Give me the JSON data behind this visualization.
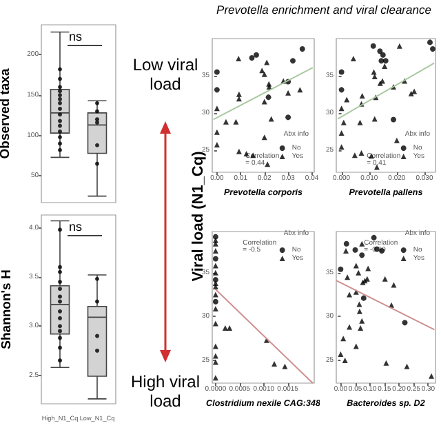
{
  "chart_data": [
    {
      "type": "box",
      "ylabel": "Observed taxa",
      "categories": [
        "High_N1_Cq",
        "Low_N1_Cq"
      ],
      "tick_labels": "y",
      "ylim": [
        17,
        237
      ],
      "yticks": [
        50,
        100,
        150,
        200
      ],
      "annotations": [
        "ns"
      ],
      "boxes": [
        {
          "low": 73,
          "q1": 103,
          "median": 128,
          "q3": 157,
          "high": 228
        },
        {
          "low": 25,
          "q1": 78,
          "median": 113,
          "q3": 128,
          "high": 143
        }
      ],
      "series": [
        {
          "type": "scatter",
          "color": "#000000",
          "x": [
            "High_N1_Cq",
            "High_N1_Cq",
            "High_N1_Cq",
            "High_N1_Cq",
            "High_N1_Cq",
            "High_N1_Cq",
            "High_N1_Cq",
            "High_N1_Cq",
            "High_N1_Cq",
            "High_N1_Cq",
            "High_N1_Cq",
            "High_N1_Cq",
            "High_N1_Cq",
            "High_N1_Cq",
            "High_N1_Cq",
            "Low_N1_Cq",
            "Low_N1_Cq",
            "Low_N1_Cq",
            "Low_N1_Cq",
            "Low_N1_Cq",
            "Low_N1_Cq"
          ],
          "values": [
            182,
            170,
            160,
            155,
            150,
            145,
            140,
            133,
            126,
            118,
            112,
            105,
            98,
            90,
            82,
            140,
            130,
            120,
            116,
            88,
            65
          ]
        }
      ]
    },
    {
      "type": "box",
      "ylabel": "Shannon's H",
      "categories": [
        "High_N1_Cq",
        "Low_N1_Cq"
      ],
      "ylim": [
        2.21,
        4.13
      ],
      "yticks": [
        {
          "value": 2.5,
          "label": "2.5"
        },
        {
          "value": 3,
          "label": "3.0"
        },
        {
          "value": 3.5,
          "label": "3.5"
        },
        {
          "value": 4,
          "label": "4.0"
        }
      ],
      "annotations": [
        "ns"
      ],
      "boxes": [
        {
          "low": 2.58,
          "q1": 2.92,
          "median": 3.22,
          "q3": 3.41,
          "high": 4.07
        },
        {
          "low": 2.26,
          "q1": 2.49,
          "median": 3.09,
          "q3": 3.2,
          "high": 3.52
        }
      ],
      "series": [
        {
          "type": "scatter",
          "color": "#000000",
          "x": [
            "High_N1_Cq",
            "High_N1_Cq",
            "High_N1_Cq",
            "High_N1_Cq",
            "High_N1_Cq",
            "High_N1_Cq",
            "High_N1_Cq",
            "High_N1_Cq",
            "High_N1_Cq",
            "High_N1_Cq",
            "High_N1_Cq",
            "High_N1_Cq",
            "High_N1_Cq",
            "High_N1_Cq",
            "Low_N1_Cq",
            "Low_N1_Cq",
            "Low_N1_Cq",
            "Low_N1_Cq"
          ],
          "values": [
            3.98,
            3.6,
            3.55,
            3.45,
            3.38,
            3.3,
            3.25,
            3.15,
            3.08,
            3,
            2.95,
            2.88,
            2.78,
            2.65,
            3.48,
            3.25,
            2.9,
            2.75
          ]
        }
      ]
    },
    {
      "type": "other",
      "annotations": [
        "Low viral load",
        "High viral load"
      ]
    },
    {
      "type": "scatter",
      "title": "Prevotella enrichment and viral clearance",
      "ylabel": "Viral load (N1_Cq)",
      "xlabel": "Prevotella corporis",
      "legend_title": "Abx info",
      "legend": "bottom right",
      "annotations": [
        "Correlation = 0.44"
      ],
      "xlim": [
        -0.002,
        0.041
      ],
      "xticks": [
        {
          "value": 0,
          "label": "0.00"
        },
        {
          "value": 0.01,
          "label": "0.01"
        },
        {
          "value": 0.02,
          "label": "0.02"
        },
        {
          "value": 0.03,
          "label": "0.03"
        },
        {
          "value": 0.04,
          "label": "0.04"
        }
      ],
      "ylim": [
        22,
        40
      ],
      "yticks": [
        25,
        30,
        35
      ],
      "series": [
        {
          "name": "No",
          "marker": "circle",
          "color": "#000000",
          "x": [
            0,
            0,
            0.0217,
            0.03,
            0.03,
            0.032,
            0.0147,
            0.0166,
            0.036
          ],
          "values": [
            35.5,
            33.1,
            32.1,
            34.2,
            29.4,
            37,
            37.4,
            37.8,
            38.6
          ]
        },
        {
          "name": "Yes",
          "marker": "triangle",
          "color": "#000000",
          "x": [
            0,
            0,
            0,
            0.0038,
            0.008,
            0.0093,
            0.0093,
            0.0093,
            0.0124,
            0.0152,
            0.019,
            0.02,
            0.0219,
            0.022,
            0.02,
            0.0229,
            0.02,
            0.0213,
            0.028,
            0.03,
            0.035,
            0.0091,
            0.021
          ],
          "values": [
            30.6,
            27.4,
            25.7,
            28.8,
            28.8,
            32.5,
            31.9,
            24.8,
            24.5,
            24.3,
            35.7,
            35.2,
            33.9,
            33.5,
            31.5,
            29.2,
            26.7,
            23.1,
            34.3,
            32.7,
            33.1,
            37.3,
            36.8
          ]
        },
        {
          "type": "line",
          "color": "#a8c8a0",
          "x": [
            -0.0015,
            0.0404
          ],
          "values": [
            29.1,
            36.1
          ]
        }
      ]
    },
    {
      "type": "scatter",
      "xlabel": "Prevotella pallens",
      "legend_title": "Abx info",
      "legend": "bottom right",
      "annotations": [
        "Correlation = 0.41"
      ],
      "xlim": [
        -0.0019,
        0.034
      ],
      "xticks": [
        {
          "value": 0,
          "label": "0.000"
        },
        {
          "value": 0.01,
          "label": "0.010"
        },
        {
          "value": 0.02,
          "label": "0.020"
        },
        {
          "value": 0.03,
          "label": "0.030"
        }
      ],
      "ylim": [
        22,
        40
      ],
      "yticks": [
        25,
        30,
        35
      ],
      "series": [
        {
          "name": "No",
          "marker": "circle",
          "color": "#000000",
          "x": [
            0,
            0,
            0.0144,
            0.016,
            0.0188,
            0.0115,
            0.0139,
            0.015,
            0.032,
            0.033
          ],
          "values": [
            35.5,
            33.1,
            37,
            37,
            29.1,
            39,
            38.3,
            37.8,
            39.5,
            38.6
          ]
        },
        {
          "name": "Yes",
          "marker": "triangle",
          "color": "#000000",
          "x": [
            0,
            0,
            0,
            0.0008,
            0.0019,
            0.0048,
            0.0072,
            0.0067,
            0.0075,
            0.0072,
            0.0108,
            0.0128,
            0.012,
            0.0124,
            0.0117,
            0.012,
            0.014,
            0.0148,
            0.0156,
            0.0188,
            0.02,
            0.0228,
            0.0252,
            0.0263,
            0.0043,
            0.021
          ],
          "values": [
            30.6,
            27.3,
            25.4,
            28.7,
            31.8,
            24.3,
            24.6,
            28.7,
            32.3,
            31.2,
            24.2,
            22.7,
            29.2,
            32.1,
            35.5,
            34.9,
            34,
            34.3,
            36.3,
            33.5,
            26.3,
            34.3,
            32.6,
            32.9,
            37.3,
            39
          ]
        },
        {
          "type": "line",
          "color": "#a8c8a0",
          "x": [
            -0.0013,
            0.0335
          ],
          "values": [
            29.2,
            36.7
          ]
        }
      ]
    },
    {
      "type": "scatter",
      "xlabel": "Clostridium nexile CAG:348",
      "legend_title": "Abx info",
      "legend": "top right",
      "annotations": [
        "Correlation = -0.5"
      ],
      "xlim": [
        -7e-05,
        0.00205
      ],
      "xticks": [
        {
          "value": 0,
          "label": "0.0000"
        },
        {
          "value": 0.0005,
          "label": "0.0005"
        },
        {
          "value": 0.001,
          "label": "0.0010"
        },
        {
          "value": 0.0015,
          "label": "0.0015"
        }
      ],
      "ylim": [
        22.4,
        39.7
      ],
      "yticks": [
        25,
        30,
        35
      ],
      "series": [
        {
          "name": "No",
          "marker": "circle",
          "color": "#000000",
          "x": [
            0,
            0,
            0,
            0
          ],
          "values": [
            39.1,
            36.6,
            34.2,
            31.7
          ]
        },
        {
          "name": "Yes",
          "marker": "triangle",
          "color": "#000000",
          "x": [
            0,
            0,
            0,
            0,
            0,
            0,
            0,
            0,
            0,
            0,
            0,
            0,
            0,
            0,
            0.0002,
            0.00029,
            0.00106,
            0.00122,
            0.00144
          ],
          "values": [
            38.3,
            37.5,
            35.8,
            35,
            33.4,
            32.5,
            30.9,
            29.2,
            26.6,
            25.5,
            24.8,
            23,
            38.7,
            33.8,
            28.7,
            28.7,
            27.3,
            24.6,
            24.3
          ]
        },
        {
          "type": "line",
          "color": "#d09090",
          "x": [
            0,
            0.00202
          ],
          "values": [
            33.1,
            22.4
          ]
        }
      ]
    },
    {
      "type": "scatter",
      "xlabel": "Bacteroides sp. D2",
      "legend_title": "Abx info",
      "legend": "top right",
      "annotations": [
        "Correlation = -0.39"
      ],
      "xlim": [
        -0.015,
        0.325
      ],
      "xticks": [
        {
          "value": 0,
          "label": "0.00"
        },
        {
          "value": 0.05,
          "label": "0.05"
        },
        {
          "value": 0.1,
          "label": "0.10"
        },
        {
          "value": 0.15,
          "label": "0.15"
        },
        {
          "value": 0.2,
          "label": "0.20"
        },
        {
          "value": 0.25,
          "label": "0.25"
        },
        {
          "value": 0.3,
          "label": "0.30"
        }
      ],
      "ylim": [
        22.4,
        39.7
      ],
      "yticks": [
        25,
        30,
        35
      ],
      "series": [
        {
          "name": "No",
          "marker": "circle",
          "color": "#000000",
          "x": [
            0,
            0.02,
            0.05,
            0.073,
            0.079,
            0.114,
            0.124,
            0.141,
            0.22
          ],
          "values": [
            35.4,
            38.3,
            37.6,
            37,
            32.1,
            39,
            37.7,
            37.5,
            29.3
          ]
        },
        {
          "name": "Yes",
          "marker": "triangle",
          "color": "#000000",
          "x": [
            0,
            0.015,
            0.009,
            0.03,
            0.023,
            0.018,
            0.03,
            0.053,
            0.053,
            0.053,
            0.061,
            0.064,
            0.065,
            0.068,
            0.073,
            0.076,
            0.073,
            0.083,
            0.094,
            0.091,
            0.152,
            0.182,
            0.174,
            0.156,
            0.227,
            0.311
          ],
          "values": [
            25.7,
            25,
            27.5,
            28.8,
            34.5,
            37.5,
            32.5,
            35.8,
            32.8,
            26.6,
            35,
            31.4,
            30.6,
            28.7,
            38.3,
            33.9,
            29.5,
            34.1,
            35.5,
            34.3,
            34.3,
            33.6,
            31.3,
            24.7,
            24.3,
            23.2
          ]
        },
        {
          "type": "line",
          "color": "#d09090",
          "x": [
            -0.015,
            0.321
          ],
          "values": [
            34.1,
            28.5
          ]
        }
      ]
    }
  ]
}
